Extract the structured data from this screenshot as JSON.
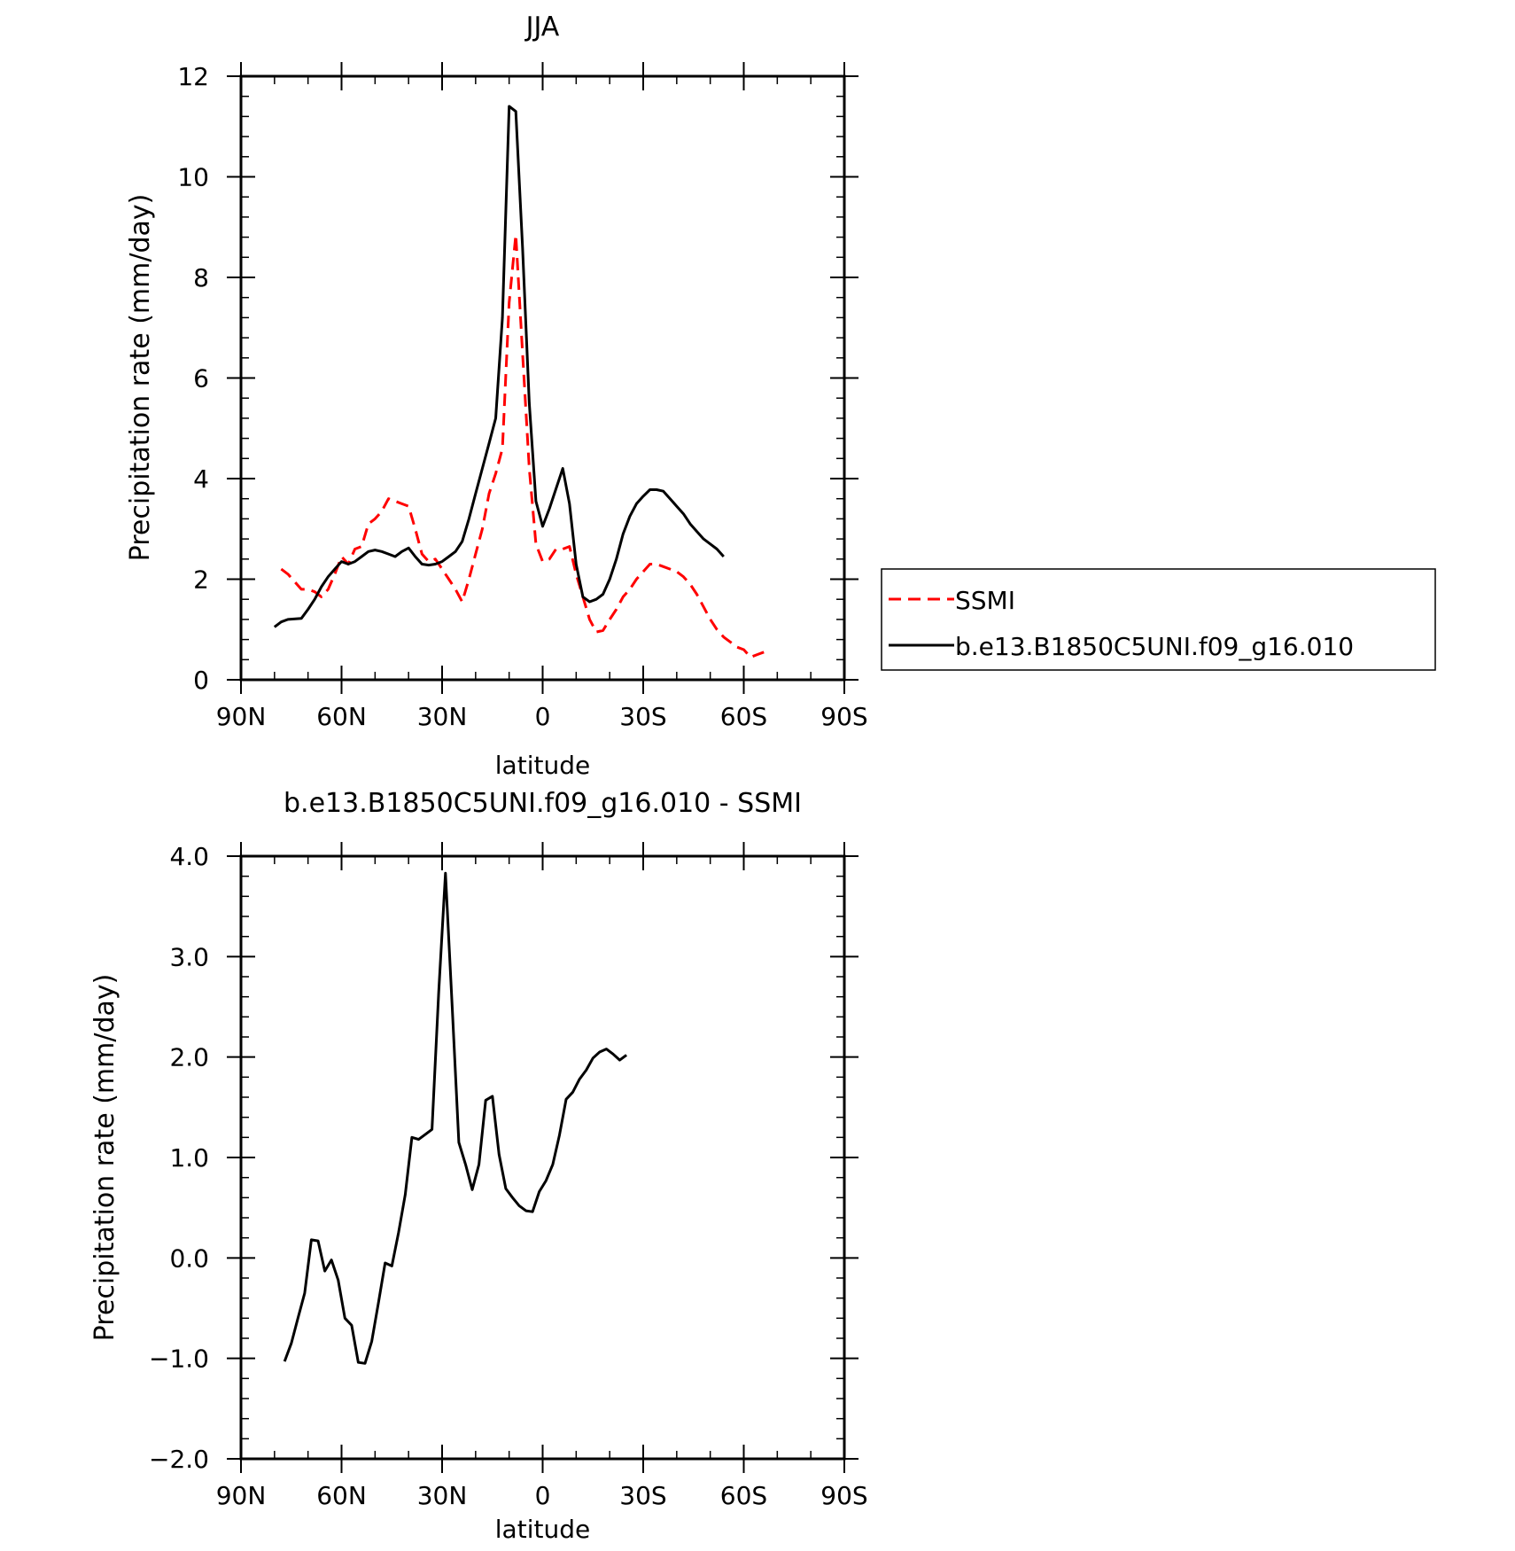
{
  "chart_data": [
    {
      "type": "line",
      "title": "JJA",
      "xlabel": "latitude",
      "ylabel": "Precipitation rate (mm/day)",
      "xlim": [
        90,
        -90
      ],
      "ylim": [
        0,
        12
      ],
      "yticks": [
        0,
        2,
        4,
        6,
        8,
        10,
        12
      ],
      "ytick_labels": [
        "0",
        "2",
        "4",
        "6",
        "8",
        "10",
        "12"
      ],
      "xticks": [
        90,
        60,
        30,
        0,
        -30,
        -60,
        -90
      ],
      "xtick_labels": [
        "90N",
        "60N",
        "30N",
        "0",
        "30S",
        "60S",
        "90S"
      ],
      "legend_position": "right",
      "series": [
        {
          "name": "SSMI",
          "color": "#ff0000",
          "dash": "dashed",
          "points": [
            [
              78,
              2.2
            ],
            [
              76,
              2.1
            ],
            [
              74,
              1.95
            ],
            [
              72,
              1.8
            ],
            [
              70,
              1.8
            ],
            [
              68,
              1.75
            ],
            [
              66,
              1.65
            ],
            [
              64,
              1.8
            ],
            [
              62,
              2.1
            ],
            [
              60,
              2.45
            ],
            [
              58,
              2.3
            ],
            [
              56,
              2.6
            ],
            [
              54,
              2.65
            ],
            [
              52,
              3.1
            ],
            [
              50,
              3.2
            ],
            [
              48,
              3.35
            ],
            [
              46,
              3.6
            ],
            [
              44,
              3.55
            ],
            [
              42,
              3.5
            ],
            [
              40,
              3.45
            ],
            [
              38,
              3.0
            ],
            [
              36,
              2.5
            ],
            [
              34,
              2.35
            ],
            [
              32,
              2.4
            ],
            [
              30,
              2.2
            ],
            [
              28,
              2.0
            ],
            [
              26,
              1.8
            ],
            [
              24,
              1.55
            ],
            [
              22,
              2.0
            ],
            [
              20,
              2.5
            ],
            [
              18,
              3.0
            ],
            [
              16,
              3.7
            ],
            [
              14,
              4.1
            ],
            [
              12,
              4.6
            ],
            [
              10,
              7.5
            ],
            [
              8,
              8.85
            ],
            [
              6,
              6.5
            ],
            [
              4,
              4.2
            ],
            [
              2,
              2.7
            ],
            [
              0,
              2.35
            ],
            [
              -2,
              2.4
            ],
            [
              -4,
              2.6
            ],
            [
              -6,
              2.6
            ],
            [
              -8,
              2.65
            ],
            [
              -10,
              2.1
            ],
            [
              -12,
              1.65
            ],
            [
              -14,
              1.2
            ],
            [
              -16,
              0.95
            ],
            [
              -18,
              0.98
            ],
            [
              -20,
              1.2
            ],
            [
              -22,
              1.4
            ],
            [
              -24,
              1.65
            ],
            [
              -26,
              1.8
            ],
            [
              -28,
              2.0
            ],
            [
              -30,
              2.15
            ],
            [
              -32,
              2.3
            ],
            [
              -34,
              2.3
            ],
            [
              -36,
              2.25
            ],
            [
              -38,
              2.2
            ],
            [
              -40,
              2.15
            ],
            [
              -42,
              2.05
            ],
            [
              -44,
              1.9
            ],
            [
              -46,
              1.7
            ],
            [
              -48,
              1.45
            ],
            [
              -50,
              1.2
            ],
            [
              -52,
              1.0
            ],
            [
              -54,
              0.85
            ],
            [
              -56,
              0.75
            ],
            [
              -58,
              0.65
            ],
            [
              -60,
              0.6
            ],
            [
              -62,
              0.45
            ],
            [
              -64,
              0.5
            ],
            [
              -66,
              0.55
            ]
          ]
        },
        {
          "name": "b.e13.B1850C5UNI.f09_g16.010",
          "color": "#000000",
          "dash": "solid",
          "points": [
            [
              80,
              1.05
            ],
            [
              78,
              1.15
            ],
            [
              76,
              1.2
            ],
            [
              72,
              1.22
            ],
            [
              70,
              1.4
            ],
            [
              68,
              1.6
            ],
            [
              66,
              1.85
            ],
            [
              64,
              2.05
            ],
            [
              62,
              2.2
            ],
            [
              60,
              2.35
            ],
            [
              58,
              2.3
            ],
            [
              56,
              2.35
            ],
            [
              54,
              2.45
            ],
            [
              52,
              2.55
            ],
            [
              50,
              2.58
            ],
            [
              48,
              2.55
            ],
            [
              46,
              2.5
            ],
            [
              44,
              2.45
            ],
            [
              42,
              2.55
            ],
            [
              40,
              2.62
            ],
            [
              38,
              2.45
            ],
            [
              36,
              2.3
            ],
            [
              34,
              2.28
            ],
            [
              32,
              2.3
            ],
            [
              30,
              2.35
            ],
            [
              28,
              2.45
            ],
            [
              26,
              2.55
            ],
            [
              24,
              2.75
            ],
            [
              22,
              3.2
            ],
            [
              20,
              3.7
            ],
            [
              18,
              4.2
            ],
            [
              16,
              4.7
            ],
            [
              14,
              5.2
            ],
            [
              12,
              7.2
            ],
            [
              10,
              11.4
            ],
            [
              8,
              11.3
            ],
            [
              6,
              8.6
            ],
            [
              4,
              5.5
            ],
            [
              2,
              3.55
            ],
            [
              0,
              3.05
            ],
            [
              -2,
              3.4
            ],
            [
              -4,
              3.8
            ],
            [
              -6,
              4.2
            ],
            [
              -8,
              3.5
            ],
            [
              -10,
              2.3
            ],
            [
              -12,
              1.65
            ],
            [
              -14,
              1.55
            ],
            [
              -16,
              1.6
            ],
            [
              -18,
              1.7
            ],
            [
              -20,
              2.0
            ],
            [
              -22,
              2.4
            ],
            [
              -24,
              2.9
            ],
            [
              -26,
              3.25
            ],
            [
              -28,
              3.5
            ],
            [
              -30,
              3.65
            ],
            [
              -32,
              3.78
            ],
            [
              -34,
              3.78
            ],
            [
              -36,
              3.75
            ],
            [
              -38,
              3.6
            ],
            [
              -40,
              3.45
            ],
            [
              -42,
              3.3
            ],
            [
              -44,
              3.1
            ],
            [
              -46,
              2.95
            ],
            [
              -48,
              2.8
            ],
            [
              -50,
              2.7
            ],
            [
              -52,
              2.6
            ],
            [
              -54,
              2.45
            ]
          ]
        }
      ]
    },
    {
      "type": "line",
      "title": "b.e13.B1850C5UNI.f09_g16.010 - SSMI",
      "xlabel": "latitude",
      "ylabel": "Precipitation rate (mm/day)",
      "xlim": [
        90,
        -90
      ],
      "ylim": [
        -2.0,
        4.0
      ],
      "yticks": [
        -2.0,
        -1.0,
        0.0,
        1.0,
        2.0,
        3.0,
        4.0
      ],
      "ytick_labels": [
        "−2.0",
        "−1.0",
        "0.0",
        "1.0",
        "2.0",
        "3.0",
        "4.0"
      ],
      "xticks": [
        90,
        60,
        30,
        0,
        -30,
        -60,
        -90
      ],
      "xtick_labels": [
        "90N",
        "60N",
        "30N",
        "0",
        "30S",
        "60S",
        "90S"
      ],
      "series": [
        {
          "color": "#000000",
          "dash": "solid",
          "points": [
            [
              77,
              -1.03
            ],
            [
              75,
              -0.85
            ],
            [
              73,
              -0.6
            ],
            [
              71,
              -0.35
            ],
            [
              69,
              0.18
            ],
            [
              67,
              0.17
            ],
            [
              65,
              -0.13
            ],
            [
              63,
              -0.02
            ],
            [
              61,
              -0.22
            ],
            [
              59,
              -0.6
            ],
            [
              57,
              -0.67
            ],
            [
              55,
              -1.04
            ],
            [
              53,
              -1.05
            ],
            [
              51,
              -0.83
            ],
            [
              49,
              -0.45
            ],
            [
              47,
              -0.05
            ],
            [
              45,
              -0.08
            ],
            [
              43,
              0.25
            ],
            [
              41,
              0.63
            ],
            [
              39,
              1.2
            ],
            [
              37,
              1.18
            ],
            [
              35,
              1.23
            ],
            [
              33,
              1.28
            ],
            [
              31,
              2.65
            ],
            [
              29,
              3.83
            ],
            [
              27,
              2.5
            ],
            [
              25,
              1.15
            ],
            [
              23,
              0.93
            ],
            [
              21,
              0.68
            ],
            [
              19,
              0.93
            ],
            [
              17,
              1.57
            ],
            [
              15,
              1.61
            ],
            [
              13,
              1.03
            ],
            [
              11,
              0.69
            ],
            [
              9,
              0.6
            ],
            [
              7,
              0.52
            ],
            [
              5,
              0.47
            ],
            [
              3,
              0.46
            ],
            [
              1,
              0.66
            ],
            [
              -1,
              0.77
            ],
            [
              -3,
              0.93
            ],
            [
              -5,
              1.22
            ],
            [
              -7,
              1.58
            ],
            [
              -9,
              1.65
            ],
            [
              -11,
              1.78
            ],
            [
              -13,
              1.87
            ],
            [
              -15,
              1.99
            ],
            [
              -17,
              2.05
            ],
            [
              -19,
              2.08
            ],
            [
              -21,
              2.03
            ],
            [
              -23,
              1.97
            ],
            [
              -25,
              2.02
            ]
          ]
        }
      ]
    }
  ]
}
